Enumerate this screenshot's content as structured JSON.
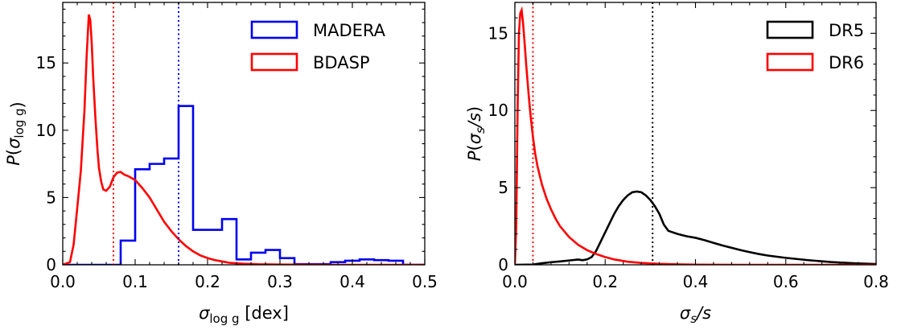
{
  "chart_data": [
    {
      "type": "histogram",
      "xlabel": "σ_log g [dex]",
      "xlabel_parts": {
        "sym": "σ",
        "sub": "log g",
        "unit": " [dex]"
      },
      "ylabel": "P(σ_log g)",
      "ylabel_parts": {
        "pre": "P(",
        "sym": "σ",
        "sub": "log g",
        "post": ")"
      },
      "xlim": [
        0.0,
        0.5
      ],
      "ylim": [
        0,
        19.5
      ],
      "xticks": [
        0.0,
        0.1,
        0.2,
        0.3,
        0.4,
        0.5
      ],
      "xtick_labels": [
        "0.0",
        "0.1",
        "0.2",
        "0.3",
        "0.4",
        "0.5"
      ],
      "yticks": [
        0,
        5,
        10,
        15
      ],
      "ytick_labels": [
        "0",
        "5",
        "10",
        "15"
      ],
      "legend_position": "top-right",
      "grid": false,
      "series": [
        {
          "name": "MADERA",
          "color": "#0000ee",
          "style": "step-histogram",
          "bin_edges": [
            0.0,
            0.08,
            0.1,
            0.12,
            0.14,
            0.16,
            0.18,
            0.2,
            0.22,
            0.24,
            0.26,
            0.28,
            0.3,
            0.32,
            0.37,
            0.39,
            0.41,
            0.43,
            0.45,
            0.47,
            0.5
          ],
          "values": [
            0,
            1.8,
            7.1,
            7.5,
            7.9,
            11.8,
            2.6,
            2.6,
            3.4,
            0.4,
            0.9,
            1.1,
            0.5,
            0.05,
            0.2,
            0.3,
            0.4,
            0.35,
            0.3,
            0.0
          ]
        },
        {
          "name": "BDASP",
          "color": "#ff0000",
          "style": "line",
          "x": [
            0.0,
            0.01,
            0.015,
            0.02,
            0.025,
            0.03,
            0.033,
            0.036,
            0.038,
            0.04,
            0.042,
            0.045,
            0.048,
            0.05,
            0.053,
            0.056,
            0.06,
            0.065,
            0.07,
            0.075,
            0.08,
            0.085,
            0.09,
            0.1,
            0.11,
            0.12,
            0.13,
            0.14,
            0.15,
            0.16,
            0.17,
            0.18,
            0.19,
            0.2,
            0.21,
            0.22,
            0.23,
            0.25,
            0.27,
            0.3,
            0.33,
            0.37,
            0.42,
            0.5
          ],
          "y": [
            0.0,
            0.2,
            1.5,
            4.2,
            7.0,
            11.5,
            15.5,
            18.6,
            18.2,
            16.5,
            14.0,
            11.0,
            8.5,
            7.2,
            6.2,
            5.6,
            5.5,
            5.8,
            6.5,
            6.85,
            6.9,
            6.7,
            6.6,
            6.3,
            5.7,
            5.0,
            4.1,
            3.2,
            2.5,
            1.9,
            1.4,
            1.0,
            0.7,
            0.5,
            0.35,
            0.25,
            0.15,
            0.08,
            0.04,
            0.02,
            0.01,
            0.0,
            0.0,
            0.0
          ]
        }
      ],
      "vlines": [
        {
          "x": 0.07,
          "color": "#ff0000",
          "style": "dotted"
        },
        {
          "x": 0.16,
          "color": "#0000ee",
          "style": "dotted"
        }
      ]
    },
    {
      "type": "histogram",
      "xlabel": "σ_s/s",
      "xlabel_parts": {
        "sym": "σ",
        "sub": "s",
        "post": "/s"
      },
      "ylabel": "P(σ_s/s)",
      "ylabel_parts": {
        "pre": "P(",
        "sym": "σ",
        "sub": "s",
        "post": "/s)"
      },
      "xlim": [
        0.0,
        0.8
      ],
      "ylim": [
        0,
        17
      ],
      "xticks": [
        0.0,
        0.2,
        0.4,
        0.6,
        0.8
      ],
      "xtick_labels": [
        "0.0",
        "0.2",
        "0.4",
        "0.6",
        "0.8"
      ],
      "yticks": [
        0,
        5,
        10,
        15
      ],
      "ytick_labels": [
        "0",
        "5",
        "10",
        "15"
      ],
      "legend_position": "top-right",
      "grid": false,
      "series": [
        {
          "name": "DR5",
          "color": "#000000",
          "style": "line",
          "x": [
            0.0,
            0.04,
            0.06,
            0.08,
            0.1,
            0.12,
            0.14,
            0.15,
            0.16,
            0.17,
            0.18,
            0.19,
            0.2,
            0.21,
            0.22,
            0.23,
            0.24,
            0.25,
            0.26,
            0.27,
            0.28,
            0.29,
            0.3,
            0.31,
            0.32,
            0.33,
            0.34,
            0.36,
            0.38,
            0.4,
            0.42,
            0.44,
            0.46,
            0.48,
            0.5,
            0.52,
            0.54,
            0.56,
            0.6,
            0.65,
            0.7,
            0.75,
            0.8
          ],
          "y": [
            0.0,
            0.02,
            0.1,
            0.17,
            0.22,
            0.28,
            0.34,
            0.3,
            0.35,
            0.5,
            0.9,
            1.5,
            2.1,
            2.7,
            3.3,
            3.8,
            4.2,
            4.5,
            4.7,
            4.75,
            4.7,
            4.5,
            4.2,
            3.8,
            3.3,
            2.6,
            2.2,
            2.0,
            1.85,
            1.75,
            1.6,
            1.42,
            1.25,
            1.1,
            0.95,
            0.82,
            0.7,
            0.6,
            0.45,
            0.3,
            0.18,
            0.1,
            0.05
          ]
        },
        {
          "name": "DR6",
          "color": "#ff0000",
          "style": "line",
          "x": [
            0.0,
            0.003,
            0.006,
            0.009,
            0.012,
            0.015,
            0.018,
            0.021,
            0.025,
            0.03,
            0.035,
            0.04,
            0.045,
            0.05,
            0.06,
            0.07,
            0.08,
            0.09,
            0.1,
            0.12,
            0.14,
            0.16,
            0.18,
            0.2,
            0.22,
            0.25,
            0.28,
            0.32,
            0.36,
            0.4,
            0.5,
            0.6,
            0.8
          ],
          "y": [
            0.0,
            2.5,
            10.0,
            15.0,
            16.3,
            16.5,
            15.7,
            14.6,
            13.0,
            11.2,
            9.6,
            8.3,
            7.2,
            6.4,
            5.2,
            4.3,
            3.6,
            3.0,
            2.5,
            1.8,
            1.3,
            0.95,
            0.7,
            0.5,
            0.35,
            0.2,
            0.12,
            0.06,
            0.03,
            0.01,
            0.0,
            0.0,
            0.0
          ]
        }
      ],
      "vlines": [
        {
          "x": 0.04,
          "color": "#ff0000",
          "style": "dotted"
        },
        {
          "x": 0.305,
          "color": "#000000",
          "style": "dotted"
        }
      ]
    }
  ]
}
